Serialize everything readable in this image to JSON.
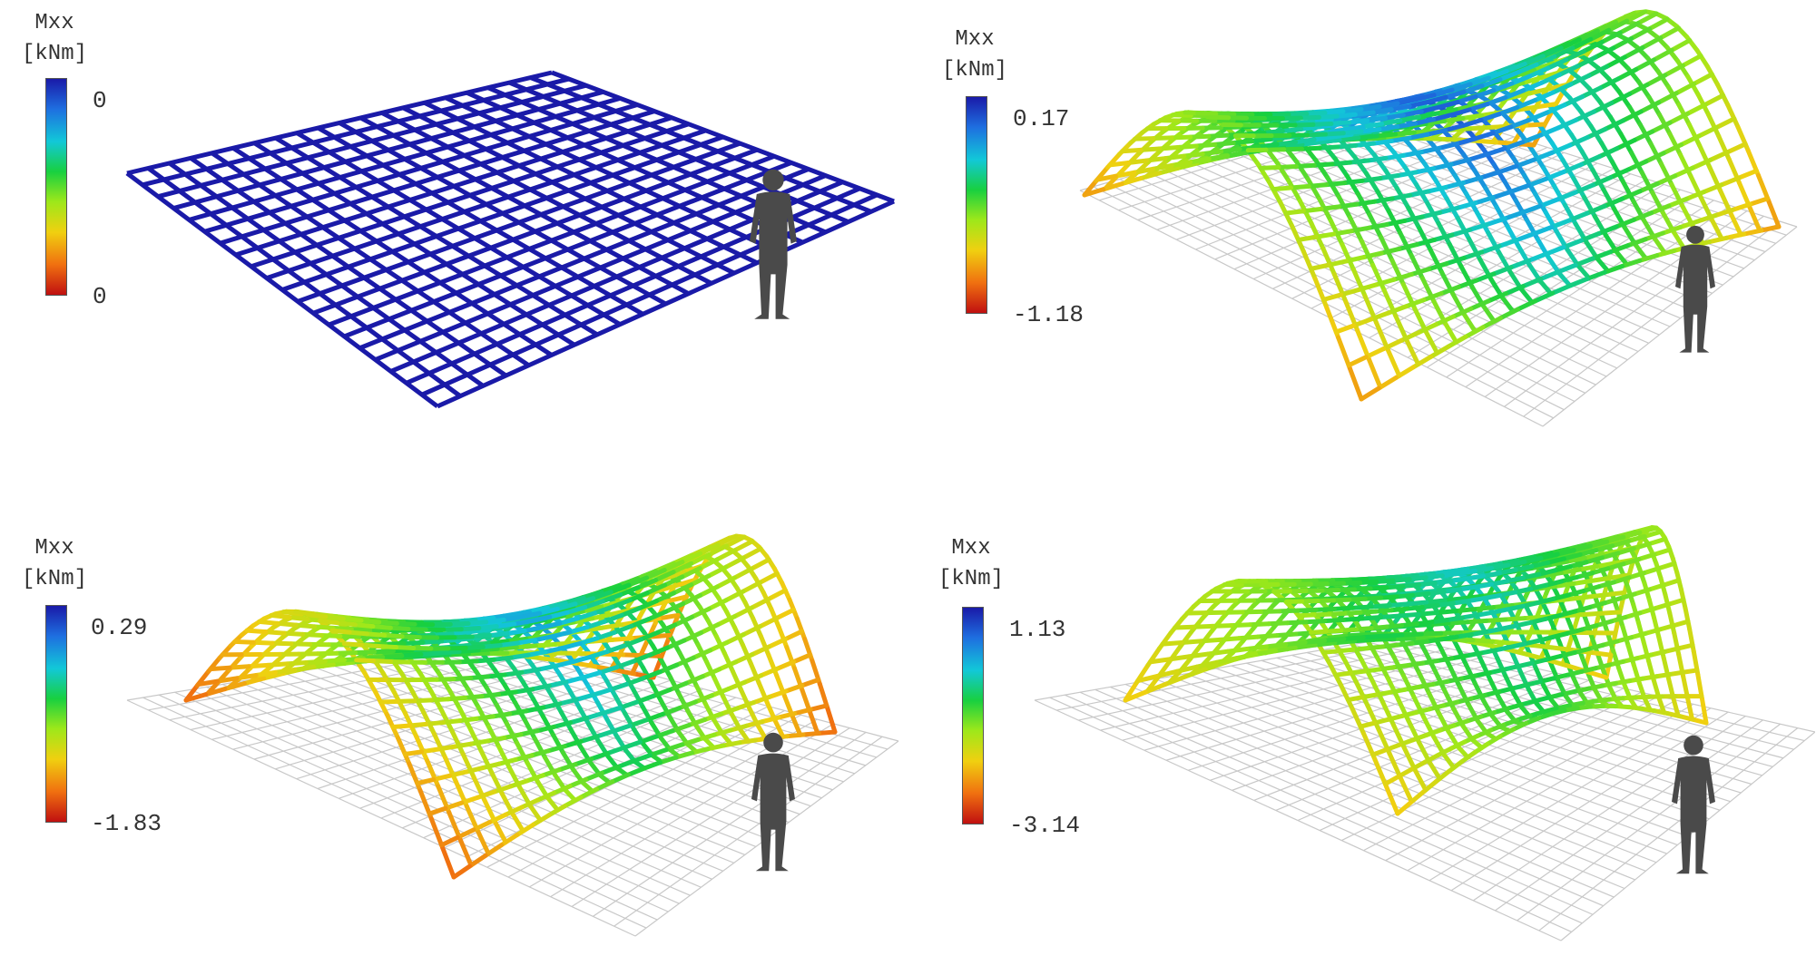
{
  "colormap": [
    "#1a1aa8",
    "#1e6fe0",
    "#12c8d8",
    "#18d040",
    "#9ee81a",
    "#f0d010",
    "#f07010",
    "#c01010"
  ],
  "person_color": "#4a4a4a",
  "ground_color": "#c8c8c8",
  "panels": [
    {
      "id": "flat",
      "legend": {
        "title_line1": "Mxx",
        "title_line2": "[kNm]",
        "max": "0",
        "min": "0"
      },
      "shape": "flat"
    },
    {
      "id": "arch-1",
      "legend": {
        "title_line1": "Mxx",
        "title_line2": "[kNm]",
        "max": "0.17",
        "min": "-1.18"
      },
      "shape": "shell"
    },
    {
      "id": "arch-2",
      "legend": {
        "title_line1": "Mxx",
        "title_line2": "[kNm]",
        "max": "0.29",
        "min": "-1.83"
      },
      "shape": "shell"
    },
    {
      "id": "arch-3",
      "legend": {
        "title_line1": "Mxx",
        "title_line2": "[kNm]",
        "max": "1.13",
        "min": "-3.14"
      },
      "shape": "shell-tall"
    }
  ]
}
